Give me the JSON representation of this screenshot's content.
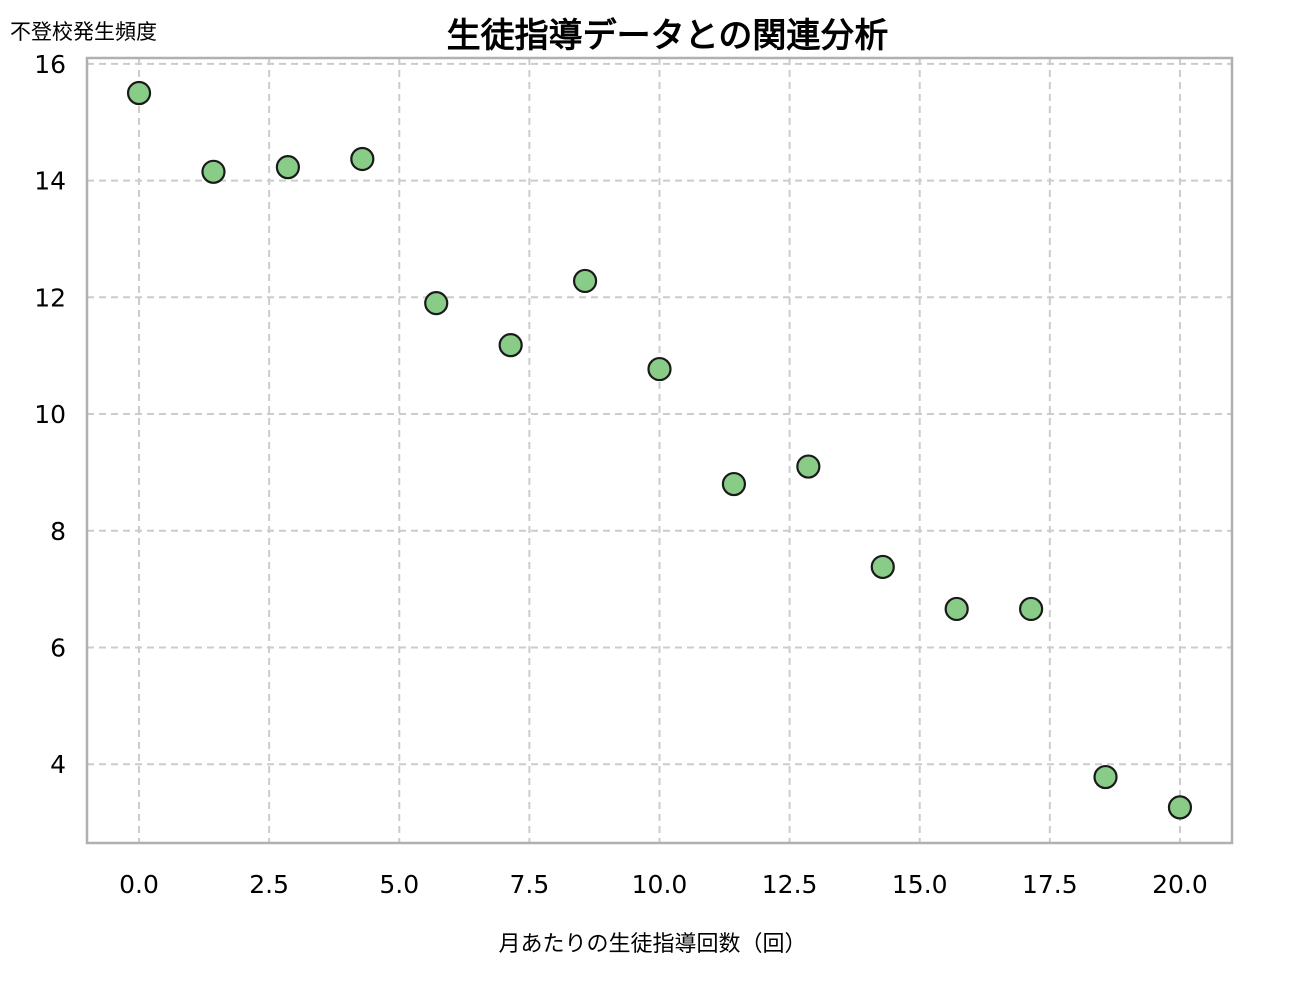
{
  "chart_data": {
    "type": "scatter",
    "title": "生徒指導データとの関連分析",
    "xlabel": "月あたりの生徒指導回数（回）",
    "ylabel": "不登校発生頻度",
    "xlim": [
      -1.0,
      21.0
    ],
    "ylim": [
      2.65,
      16.1
    ],
    "xticks": [
      0.0,
      2.5,
      5.0,
      7.5,
      10.0,
      12.5,
      15.0,
      17.5,
      20.0
    ],
    "xtick_labels": [
      "0.0",
      "2.5",
      "5.0",
      "7.5",
      "10.0",
      "12.5",
      "15.0",
      "17.5",
      "20.0"
    ],
    "yticks": [
      4,
      6,
      8,
      10,
      12,
      14,
      16
    ],
    "ytick_labels": [
      "4",
      "6",
      "8",
      "10",
      "12",
      "14",
      "16"
    ],
    "grid": true,
    "point_color": "#88cc88",
    "point_edge_color": "#1a1a1a",
    "grid_color": "#cccccc",
    "spine_color": "#b0b0b0",
    "points": [
      {
        "x": 0.0,
        "y": 15.5
      },
      {
        "x": 1.43,
        "y": 14.15
      },
      {
        "x": 2.86,
        "y": 14.23
      },
      {
        "x": 4.29,
        "y": 14.37
      },
      {
        "x": 5.71,
        "y": 11.9
      },
      {
        "x": 7.14,
        "y": 11.18
      },
      {
        "x": 8.57,
        "y": 12.28
      },
      {
        "x": 10.0,
        "y": 10.77
      },
      {
        "x": 11.43,
        "y": 8.8
      },
      {
        "x": 12.86,
        "y": 9.1
      },
      {
        "x": 14.29,
        "y": 7.38
      },
      {
        "x": 15.71,
        "y": 6.66
      },
      {
        "x": 17.14,
        "y": 6.66
      },
      {
        "x": 18.57,
        "y": 3.78
      },
      {
        "x": 20.0,
        "y": 3.26
      }
    ]
  }
}
